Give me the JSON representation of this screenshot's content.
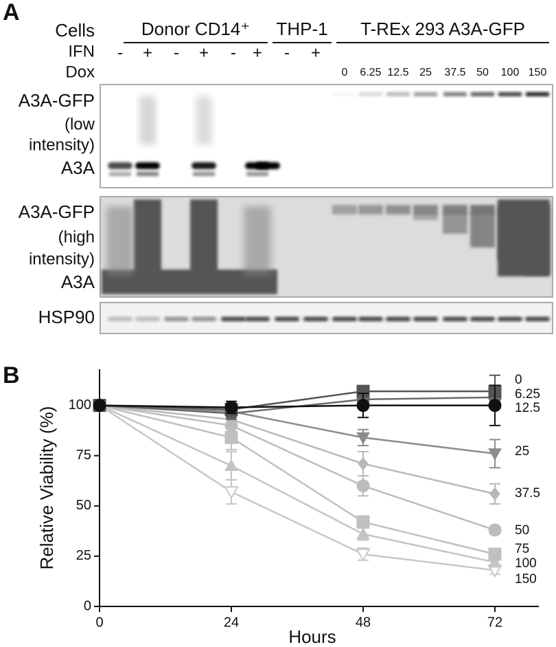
{
  "panel_a": {
    "label": "A",
    "row_labels": {
      "cells": "Cells",
      "ifn": "IFN",
      "dox": "Dox"
    },
    "groups": [
      "Donor CD14⁺",
      "THP-1",
      "T-REx 293 A3A-GFP"
    ],
    "ifn": [
      "-",
      "+",
      "-",
      "+",
      "-",
      "+",
      "-",
      "+"
    ],
    "dox": [
      0,
      6.25,
      12.5,
      25,
      37.5,
      50,
      100,
      150
    ],
    "blot_labels": [
      [
        "A3A-GFP",
        "(low",
        "intensity)",
        "A3A"
      ],
      [
        "A3A-GFP",
        "(high",
        "intensity)",
        "A3A"
      ],
      [
        "HSP90"
      ]
    ]
  },
  "chart_data": {
    "type": "line",
    "panel_label": "B",
    "xlabel": "Hours",
    "ylabel": "Relative Viability (%)",
    "x": [
      0,
      24,
      48,
      72
    ],
    "xlim": [
      0,
      80
    ],
    "xticks": [
      0,
      24,
      48,
      72
    ],
    "ylim": [
      0,
      118
    ],
    "yticks": [
      0,
      25,
      50,
      75,
      100
    ],
    "series": [
      {
        "name": "0",
        "color": "#111111",
        "marker": "circle",
        "values": [
          100,
          99,
          100,
          100
        ],
        "errors": [
          0,
          3,
          6,
          10
        ]
      },
      {
        "name": "6.25",
        "color": "#555555",
        "marker": "square",
        "values": [
          100,
          98,
          107,
          107
        ],
        "errors": [
          0,
          4,
          2,
          8
        ]
      },
      {
        "name": "12.5",
        "color": "#6a6a6a",
        "marker": "circle",
        "values": [
          100,
          96,
          103,
          104
        ],
        "errors": [
          0,
          3,
          3,
          4
        ]
      },
      {
        "name": "25",
        "color": "#8c8c8c",
        "marker": "triangle-down",
        "values": [
          100,
          97,
          84,
          76
        ],
        "errors": [
          0,
          3,
          4,
          7
        ]
      },
      {
        "name": "37.5",
        "color": "#b8b8b8",
        "marker": "diamond",
        "values": [
          100,
          93,
          71,
          56
        ],
        "errors": [
          0,
          3,
          6,
          5
        ]
      },
      {
        "name": "50",
        "color": "#bdbdbd",
        "marker": "circle",
        "values": [
          100,
          90,
          60,
          38
        ],
        "errors": [
          0,
          3,
          5,
          2
        ]
      },
      {
        "name": "75",
        "color": "#c0c0c0",
        "marker": "square",
        "values": [
          100,
          84,
          42,
          26
        ],
        "errors": [
          0,
          6,
          3,
          2
        ]
      },
      {
        "name": "100",
        "color": "#c4c4c4",
        "marker": "triangle-up",
        "values": [
          100,
          70,
          36,
          22
        ],
        "errors": [
          0,
          7,
          3,
          2
        ]
      },
      {
        "name": "150",
        "color": "#c8c8c8",
        "marker": "triangle-down-open",
        "values": [
          100,
          57,
          26,
          18
        ],
        "errors": [
          0,
          6,
          3,
          2
        ]
      }
    ]
  }
}
